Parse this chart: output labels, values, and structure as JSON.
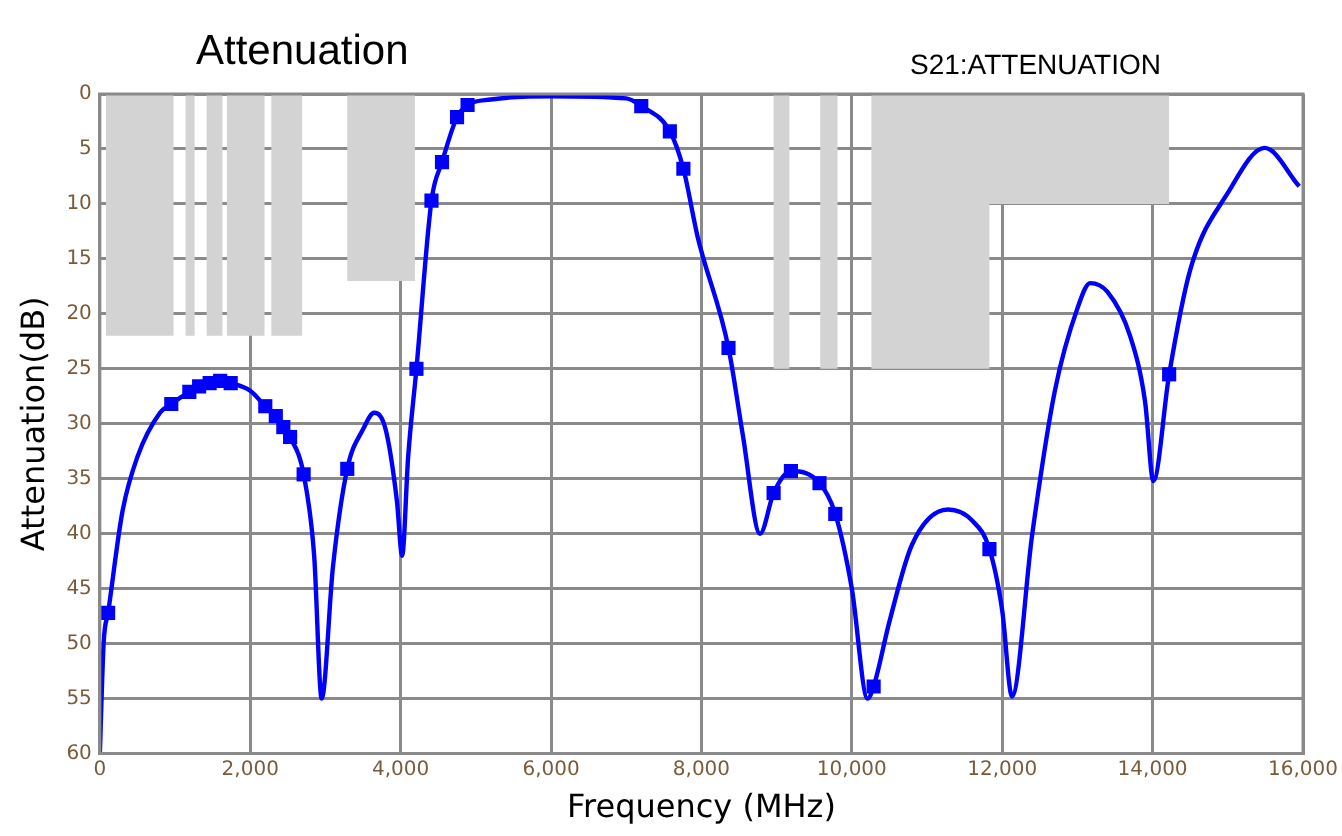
{
  "chart_data": {
    "type": "line",
    "title": "Attenuation",
    "xlabel": "Frequency (MHz)",
    "ylabel": "Attenuation(dB)",
    "annotations": [
      "S21:ATTENUATION"
    ],
    "xlim": [
      0,
      16000
    ],
    "xticks": [
      0,
      {
        "value": 2000,
        "label": "2,000"
      },
      {
        "value": 4000,
        "label": "4,000"
      },
      {
        "value": 6000,
        "label": "6,000"
      },
      {
        "value": 8000,
        "label": "8,000"
      },
      {
        "value": 10000,
        "label": "10,000"
      },
      {
        "value": 12000,
        "label": "12,000"
      },
      {
        "value": 14000,
        "label": "14,000"
      },
      {
        "value": 16000,
        "label": "16,000"
      }
    ],
    "ylim": [
      60,
      0
    ],
    "yticks": [
      0,
      5,
      10,
      15,
      20,
      25,
      30,
      35,
      40,
      45,
      50,
      55,
      60
    ],
    "grid": true,
    "legend": false,
    "series": [
      {
        "type": "area",
        "color": "#d3d3d3",
        "x": [
          80,
          80,
          980,
          980,
          1140,
          1140,
          1260,
          1260,
          1420,
          1420,
          1630,
          1630,
          1690,
          1690,
          2190,
          2190,
          2280,
          2280,
          2690,
          2690,
          3290,
          3290,
          4190,
          4190,
          8960,
          8960,
          9170,
          9170,
          9580,
          9580,
          9810,
          9810,
          10260,
          10260,
          11830,
          11830,
          14220,
          14220
        ],
        "values": [
          0,
          22,
          22,
          0,
          0,
          22,
          22,
          0,
          0,
          22,
          22,
          0,
          0,
          22,
          22,
          0,
          0,
          22,
          22,
          0,
          0,
          17,
          17,
          0,
          0,
          25,
          25,
          0,
          0,
          25,
          25,
          0,
          0,
          25,
          25,
          10,
          10,
          0
        ]
      },
      {
        "color": "#0000ff",
        "marker": "none",
        "x": [
          0,
          50,
          110,
          300,
          500,
          800,
          950,
          1190,
          1320,
          1460,
          1600,
          1740,
          2000,
          2200,
          2340,
          2440,
          2530,
          2710,
          2850,
          2950,
          3100,
          3290,
          3500,
          3650,
          3800,
          3950,
          4020,
          4100,
          4210,
          4410,
          4550,
          4750,
          4890,
          5200,
          6000,
          7000,
          7200,
          7580,
          7760,
          7950,
          8360,
          8550,
          8780,
          8960,
          9190,
          9570,
          9780,
          10000,
          10210,
          10290,
          10500,
          10800,
          11280,
          11600,
          11830,
          12000,
          12130,
          12400,
          12700,
          13000,
          13170,
          13400,
          13700,
          13900,
          14010,
          14220,
          14500,
          15000,
          15490,
          15950
        ],
        "values": [
          60,
          50,
          47.2,
          38,
          33,
          29,
          28.2,
          27.1,
          26.6,
          26.3,
          26.1,
          26.3,
          27,
          28.4,
          29.3,
          30.3,
          31.2,
          34.6,
          42,
          55,
          43,
          34.1,
          30.5,
          29,
          30.5,
          37,
          42,
          33,
          25,
          9.7,
          6.2,
          2.1,
          1,
          0.5,
          0.2,
          0.4,
          1.1,
          3.4,
          6.8,
          13,
          23.1,
          31,
          40,
          36.3,
          34.3,
          35.4,
          38.2,
          45,
          55,
          53.9,
          48,
          41,
          37.8,
          38.8,
          41.4,
          47,
          54.8,
          40,
          27,
          19.5,
          17.2,
          18,
          22,
          28,
          35.2,
          25.5,
          16,
          9,
          4.9,
          8.4
        ]
      },
      {
        "type": "scatter",
        "color": "#0000ff",
        "marker": "square",
        "x": [
          110,
          950,
          1190,
          1320,
          1460,
          1600,
          1740,
          2200,
          2340,
          2440,
          2530,
          2710,
          3290,
          4210,
          4410,
          4550,
          4750,
          4890,
          7200,
          7580,
          7760,
          8360,
          8960,
          9190,
          9570,
          9780,
          10290,
          11830,
          14220
        ],
        "values": [
          47.2,
          28.2,
          27.1,
          26.6,
          26.3,
          26.1,
          26.3,
          28.4,
          29.3,
          30.3,
          31.2,
          34.6,
          34.1,
          25,
          9.7,
          6.2,
          2.1,
          1,
          1.1,
          3.4,
          6.8,
          23.1,
          36.3,
          34.3,
          35.4,
          38.2,
          53.9,
          41.4,
          25.5
        ]
      }
    ]
  }
}
